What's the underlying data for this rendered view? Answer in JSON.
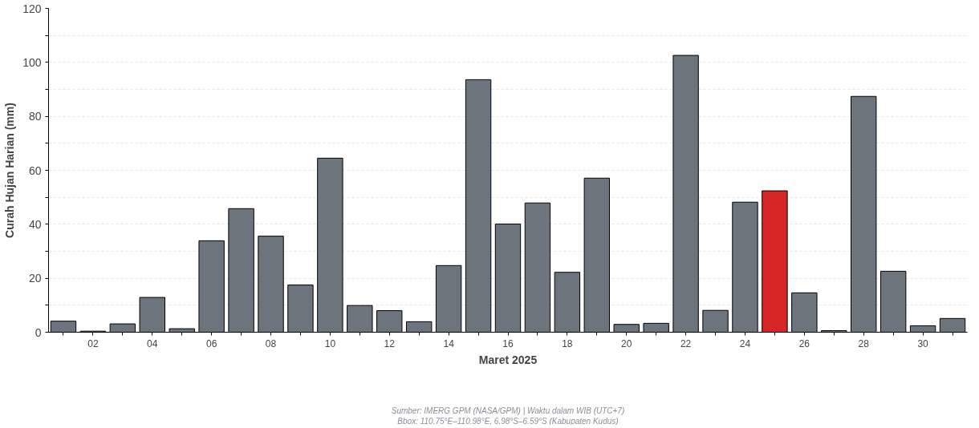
{
  "chart_data": {
    "type": "bar",
    "xlabel": "Maret 2025",
    "ylabel": "Curah Hujan Harian (mm)",
    "categories": [
      null,
      "02",
      null,
      "04",
      null,
      "06",
      null,
      "08",
      null,
      "10",
      null,
      "12",
      null,
      "14",
      null,
      "16",
      null,
      "18",
      null,
      "20",
      null,
      "22",
      null,
      "24",
      null,
      "26",
      null,
      "28",
      null,
      "30",
      null
    ],
    "values": [
      4.1,
      0.4,
      3.1,
      12.9,
      1.3,
      33.9,
      45.8,
      35.6,
      17.5,
      64.5,
      9.9,
      8.0,
      3.9,
      24.7,
      93.6,
      40.1,
      47.9,
      22.2,
      57.1,
      2.9,
      3.3,
      102.6,
      8.1,
      48.2,
      52.4,
      14.6,
      0.6,
      87.4,
      22.6,
      2.4,
      5.1
    ],
    "colors": [
      "#6c747d",
      "#6c747d",
      "#6c747d",
      "#6c747d",
      "#6c747d",
      "#6c747d",
      "#6c747d",
      "#6c747d",
      "#6c747d",
      "#6c747d",
      "#6c747d",
      "#6c747d",
      "#6c747d",
      "#6c747d",
      "#6c747d",
      "#6c747d",
      "#6c747d",
      "#6c747d",
      "#6c747d",
      "#6c747d",
      "#6c747d",
      "#6c747d",
      "#6c747d",
      "#6c747d",
      "#d62728",
      "#6c747d",
      "#6c747d",
      "#6c747d",
      "#6c747d",
      "#6c747d",
      "#6c747d"
    ],
    "ylim": [
      0,
      120
    ],
    "yticks": [
      0,
      {
        "value": 10,
        "label": null
      },
      20,
      {
        "value": 30,
        "label": null
      },
      40,
      {
        "value": 50,
        "label": null
      },
      60,
      {
        "value": 70,
        "label": null
      },
      80,
      {
        "value": 90,
        "label": null
      },
      100,
      {
        "value": 110,
        "label": null
      },
      120
    ],
    "grid": "y",
    "annotations": [
      "Sumber: IMERG GPM (NASA/GPM) | Waktu dalam WIB (UTC+7)",
      "Bbox: 110.75°E–110.98°E, 6.98°S–6.59°S (Kabupaten Kudus)"
    ]
  }
}
